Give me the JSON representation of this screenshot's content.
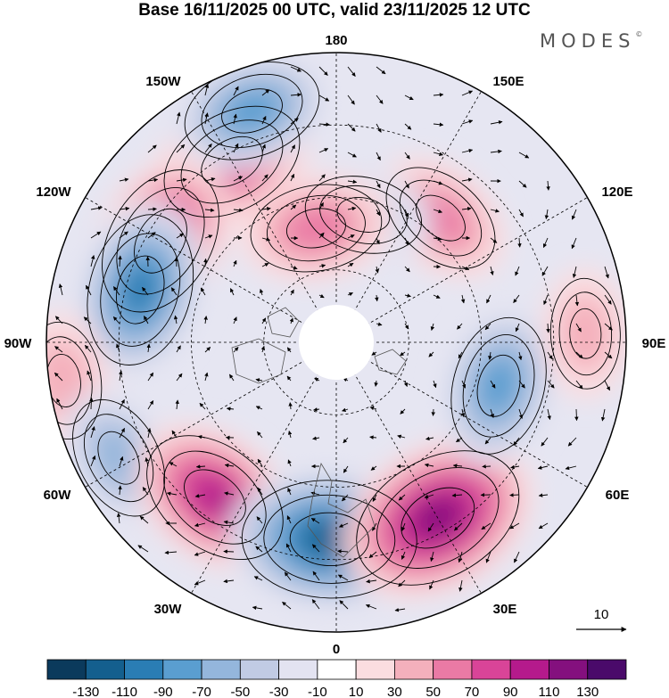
{
  "title": "Base 16/11/2025 00 UTC, valid 23/11/2025 12 UTC",
  "brand": "MODES",
  "brand_mark": "©",
  "longitude_labels": {
    "top": "180",
    "top_right": "150E",
    "right_upper": "120E",
    "right": "90E",
    "right_lower": "60E",
    "bottom_right": "30E",
    "bottom": "0",
    "bottom_left": "30W",
    "left_lower": "60W",
    "left": "90W",
    "left_upper": "120W",
    "top_left": "150W"
  },
  "wind_reference": {
    "value": "10"
  },
  "colorbar": {
    "colors": [
      "#0b3a5c",
      "#145f8e",
      "#2a7db4",
      "#5a9ed0",
      "#94b6dc",
      "#c1cbe4",
      "#e3e3f1",
      "#ffffff",
      "#fbdde0",
      "#f4b0bc",
      "#ea7aa5",
      "#d94498",
      "#b51a8c",
      "#84107e",
      "#4a0a6a"
    ],
    "ticks": [
      "-130",
      "-110",
      "-90",
      "-70",
      "-50",
      "-30",
      "-10",
      "10",
      "30",
      "50",
      "70",
      "90",
      "110",
      "130"
    ]
  },
  "anomalies": [
    {
      "lon": -150,
      "r": 0.72,
      "value": 80
    },
    {
      "lon": -160,
      "r": 0.85,
      "value": -70
    },
    {
      "lon": -120,
      "r": 0.7,
      "value": 90
    },
    {
      "lon": -105,
      "r": 0.7,
      "value": -90
    },
    {
      "lon": -82,
      "r": 0.95,
      "value": 40
    },
    {
      "lon": -62,
      "r": 0.85,
      "value": -50
    },
    {
      "lon": -38,
      "r": 0.68,
      "value": 90
    },
    {
      "lon": -2,
      "r": 0.68,
      "value": -120
    },
    {
      "lon": 30,
      "r": 0.7,
      "value": 120
    },
    {
      "lon": 75,
      "r": 0.58,
      "value": -70
    },
    {
      "lon": 140,
      "r": 0.56,
      "value": 50
    },
    {
      "lon": 168,
      "r": 0.45,
      "value": -40
    },
    {
      "lon": -170,
      "r": 0.4,
      "value": 60
    },
    {
      "lon": 92,
      "r": 0.86,
      "value": 30
    }
  ]
}
